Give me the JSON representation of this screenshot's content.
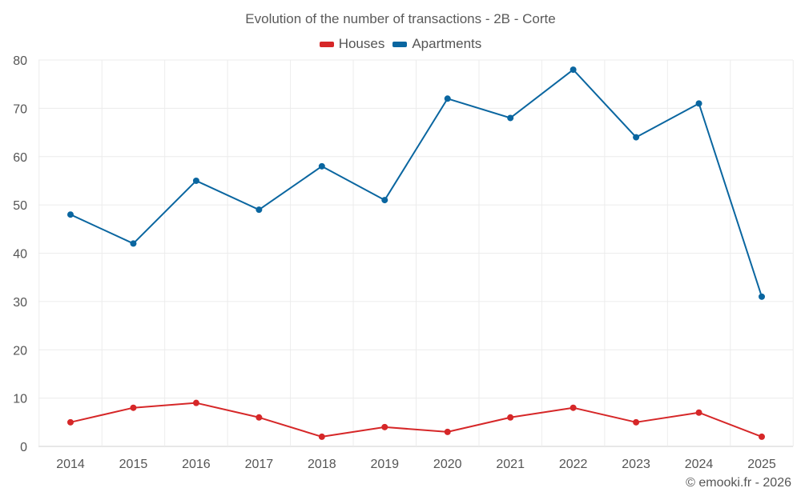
{
  "chart_data": {
    "type": "line",
    "title": "Evolution of the number of transactions - 2B - Corte",
    "xlabel": "",
    "ylabel": "",
    "ylim": [
      0,
      80
    ],
    "yticks": [
      0,
      10,
      20,
      30,
      40,
      50,
      60,
      70,
      80
    ],
    "categories": [
      "2014",
      "2015",
      "2016",
      "2017",
      "2018",
      "2019",
      "2020",
      "2021",
      "2022",
      "2023",
      "2024",
      "2025"
    ],
    "series": [
      {
        "name": "Houses",
        "color": "#d62728",
        "values": [
          5,
          8,
          9,
          6,
          2,
          4,
          3,
          6,
          8,
          5,
          7,
          2
        ]
      },
      {
        "name": "Apartments",
        "color": "#0a66a0",
        "values": [
          48,
          42,
          55,
          49,
          58,
          51,
          72,
          68,
          78,
          64,
          71,
          31
        ]
      }
    ],
    "legend_position": "top-center",
    "grid": true
  },
  "credit": "© emooki.fr - 2026"
}
